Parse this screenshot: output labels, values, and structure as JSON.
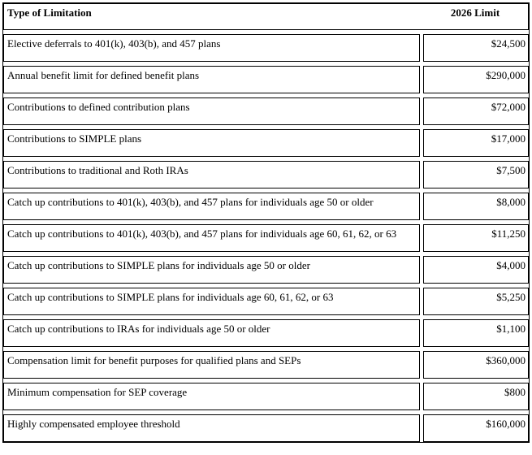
{
  "table": {
    "header": {
      "type_col": "Type of Limitation",
      "limit_col": "2026 Limit"
    },
    "rows": [
      {
        "label": "Elective deferrals to 401(k), 403(b), and 457 plans",
        "value": "$24,500"
      },
      {
        "label": "Annual benefit limit for defined benefit plans",
        "value": "$290,000"
      },
      {
        "label": "Contributions to defined contribution plans",
        "value": "$72,000"
      },
      {
        "label": "Contributions to SIMPLE plans",
        "value": "$17,000"
      },
      {
        "label": "Contributions to traditional and Roth IRAs",
        "value": "$7,500"
      },
      {
        "label": "Catch up contributions to 401(k), 403(b), and 457 plans for individuals age 50 or older",
        "value": "$8,000"
      },
      {
        "label": "Catch up contributions to 401(k), 403(b), and 457 plans for individuals age 60, 61, 62, or 63",
        "value": "$11,250"
      },
      {
        "label": "Catch up contributions to SIMPLE plans for individuals age 50 or older",
        "value": "$4,000"
      },
      {
        "label": "Catch up contributions to SIMPLE plans for individuals age 60, 61, 62, or 63",
        "value": "$5,250"
      },
      {
        "label": "Catch up contributions to IRAs for individuals age 50 or older",
        "value": "$1,100"
      },
      {
        "label": "Compensation limit for benefit purposes for qualified plans and SEPs",
        "value": "$360,000"
      },
      {
        "label": "Minimum compensation for SEP coverage",
        "value": "$800"
      },
      {
        "label": "Highly compensated employee threshold",
        "value": "$160,000"
      }
    ]
  },
  "colors": {
    "border": "#000000",
    "background": "#ffffff",
    "text": "#000000"
  }
}
